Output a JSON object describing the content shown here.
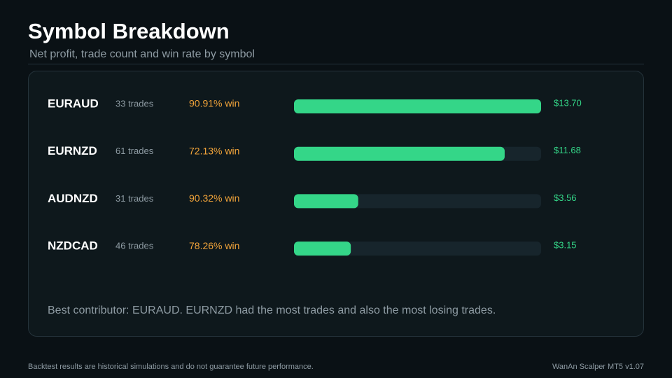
{
  "chart_data": {
    "type": "bar",
    "orientation": "horizontal",
    "title": "Symbol Breakdown",
    "subtitle": "Net profit, trade count and win rate by symbol",
    "categories": [
      "EURAUD",
      "EURNZD",
      "AUDNZD",
      "NZDCAD"
    ],
    "values": [
      13.7,
      11.68,
      3.56,
      3.15
    ],
    "value_labels": [
      "$13.70",
      "$11.68",
      "$3.56",
      "$3.15"
    ],
    "trade_labels": [
      "33 trades",
      "61 trades",
      "31 trades",
      "46 trades"
    ],
    "win_rate_labels": [
      "90.91% win",
      "72.13% win",
      "90.32% win",
      "78.26% win"
    ],
    "color": "#34d688",
    "xlim": [
      0,
      13.7
    ],
    "annotation": "Best contributor: EURAUD. EURNZD had the most trades and also the most losing trades.",
    "footer_left": "Backtest results are historical simulations and do not guarantee future performance.",
    "footer_right": "WanAn Scalper MT5 v1.07"
  }
}
